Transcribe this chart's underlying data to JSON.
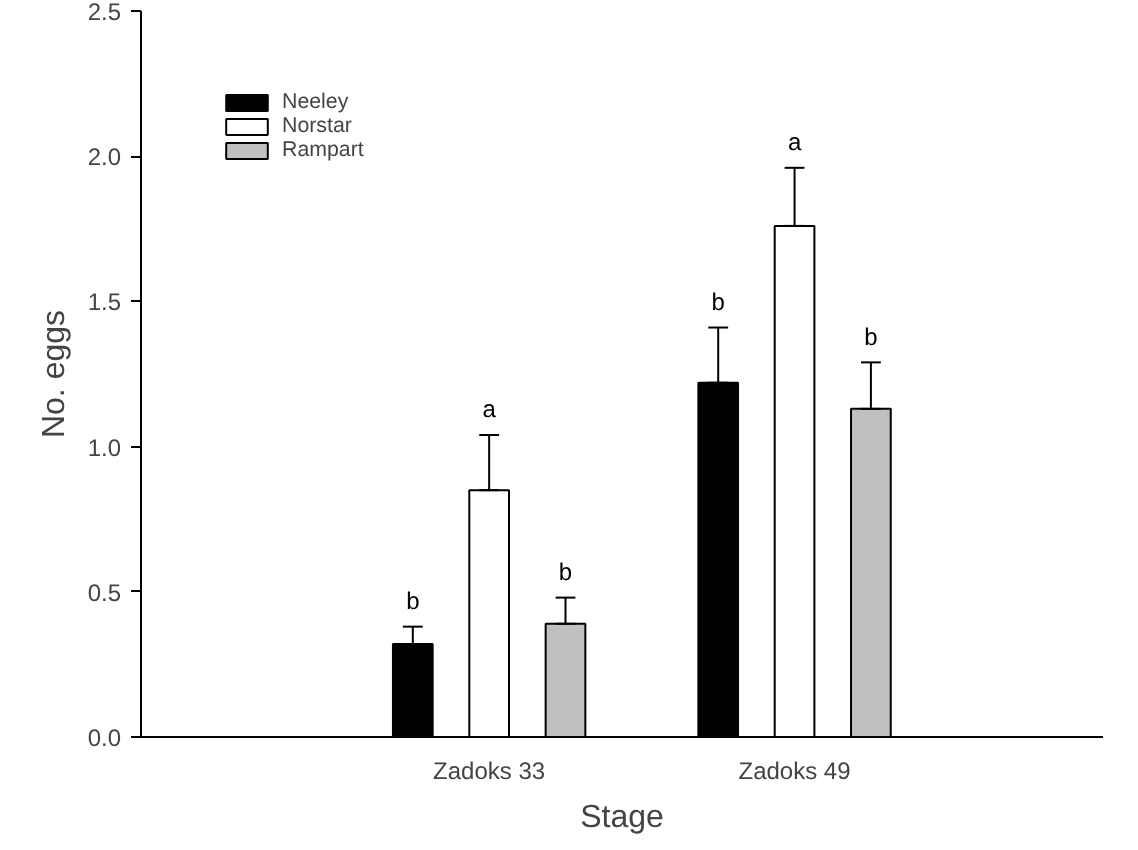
{
  "chart_data": {
    "type": "bar",
    "xlabel": "Stage",
    "ylabel": "No. eggs",
    "categories": [
      "Zadoks 33",
      "Zadoks 49"
    ],
    "series": [
      {
        "name": "Neeley",
        "color": "#000000",
        "values": [
          0.32,
          1.22
        ],
        "errors": [
          [
            0.32,
            0.38
          ],
          [
            1.22,
            1.41
          ]
        ]
      },
      {
        "name": "Norstar",
        "color": "#ffffff",
        "values": [
          0.85,
          1.76
        ],
        "errors": [
          [
            0.85,
            1.04
          ],
          [
            1.76,
            1.96
          ]
        ]
      },
      {
        "name": "Rampart",
        "color": "#c0c0c0",
        "values": [
          0.39,
          1.13
        ],
        "errors": [
          [
            0.39,
            0.48
          ],
          [
            1.13,
            1.29
          ]
        ]
      }
    ],
    "ylim": [
      0,
      2.5
    ],
    "yticks": [
      {
        "value": 0,
        "label": "0.0"
      },
      {
        "value": 0.5,
        "label": "0.5"
      },
      {
        "value": 1,
        "label": "1.0"
      },
      {
        "value": 1.5,
        "label": "1.5"
      },
      {
        "value": 2,
        "label": "2.0"
      },
      {
        "value": 2.5,
        "label": "2.5"
      }
    ],
    "grid": false,
    "legend": "top left",
    "annotations": [
      "b",
      "a",
      "b",
      "b",
      "a",
      "b"
    ]
  }
}
